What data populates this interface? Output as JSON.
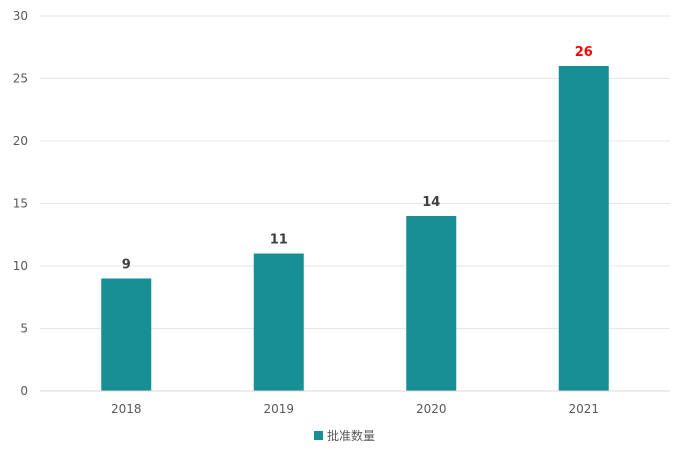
{
  "chart_data": {
    "type": "bar",
    "categories": [
      "2018",
      "2019",
      "2020",
      "2021"
    ],
    "series": [
      {
        "name": "批准数量",
        "values": [
          9,
          11,
          14,
          26
        ]
      }
    ],
    "data_labels": [
      "9",
      "11",
      "14",
      "26"
    ],
    "highlight": {
      "index": 3,
      "color": "#ff0000"
    },
    "label_color": "#404040",
    "bar_color": "#178f94",
    "ylim": [
      0,
      30
    ],
    "y_ticks": [
      0,
      5,
      10,
      15,
      20,
      25,
      30
    ],
    "grid": true,
    "legend": {
      "position": "bottom",
      "entries": [
        "批准数量"
      ]
    }
  }
}
